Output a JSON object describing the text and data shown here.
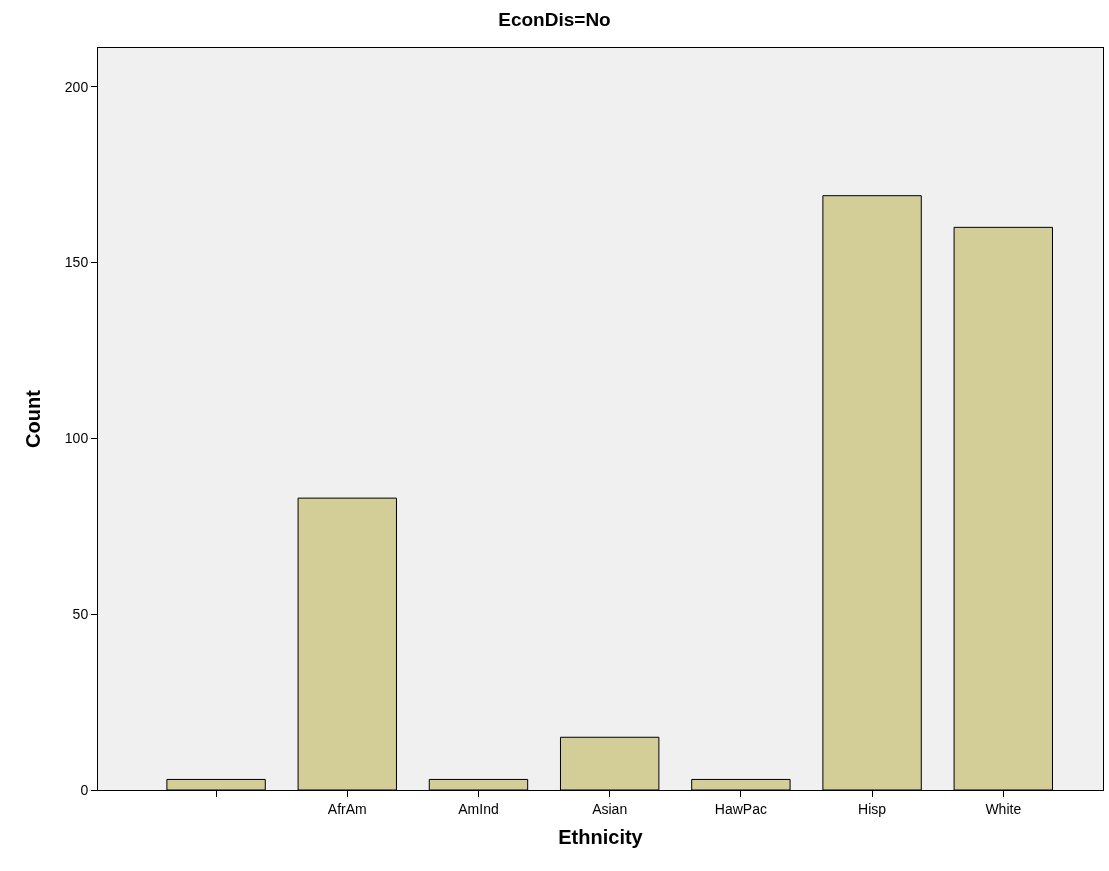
{
  "chart_data": {
    "type": "bar",
    "title": "EconDis=No",
    "xlabel": "Ethnicity",
    "ylabel": "Count",
    "categories": [
      null,
      "AfrAm",
      "AmInd",
      "Asian",
      "HawPac",
      "Hisp",
      "White"
    ],
    "values": [
      3,
      83,
      3,
      15,
      3,
      169,
      160
    ],
    "color": "#d3ce97",
    "ylim": [
      0,
      211
    ],
    "yticks": [
      0,
      50,
      100,
      150,
      200
    ],
    "grid": false
  }
}
